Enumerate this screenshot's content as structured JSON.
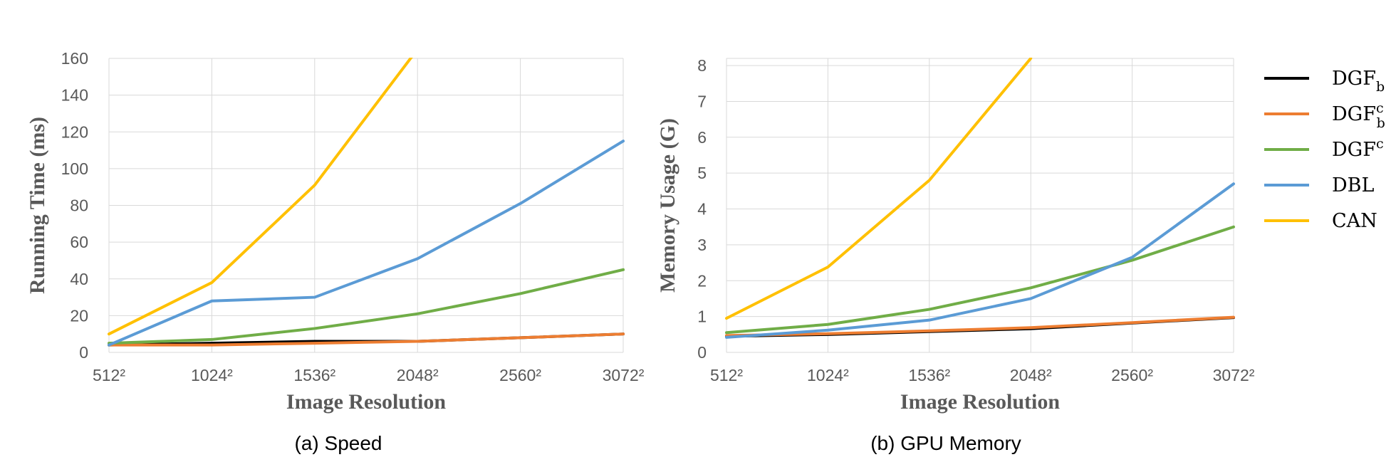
{
  "chart_data": [
    {
      "type": "line",
      "caption": "(a) Speed",
      "xlabel": "Image Resolution",
      "ylabel": "Running Time (ms)",
      "categories": [
        "512²",
        "1024²",
        "1536²",
        "2048²",
        "2560²",
        "3072²"
      ],
      "ylim": [
        0,
        160
      ],
      "yticks": [
        0,
        20,
        40,
        60,
        80,
        100,
        120,
        140,
        160
      ],
      "grid": true,
      "series": [
        {
          "name": "DGF_b",
          "color": "#000000",
          "values": [
            4,
            5,
            6,
            6,
            8,
            10
          ]
        },
        {
          "name": "DGF_b^c",
          "color": "#ED7D31",
          "values": [
            4,
            4,
            5,
            6,
            8,
            10
          ]
        },
        {
          "name": "DGF^c",
          "color": "#70AD47",
          "values": [
            5,
            7,
            13,
            21,
            32,
            45
          ]
        },
        {
          "name": "DBL",
          "color": "#5B9BD5",
          "values": [
            4,
            28,
            30,
            51,
            81,
            115
          ]
        },
        {
          "name": "CAN",
          "color": "#FFC000",
          "values": [
            10,
            38,
            91,
            165,
            null,
            null
          ]
        }
      ]
    },
    {
      "type": "line",
      "caption": "(b) GPU Memory",
      "xlabel": "Image Resolution",
      "ylabel": "Memory Usage (G)",
      "categories": [
        "512²",
        "1024²",
        "1536²",
        "2048²",
        "2560²",
        "3072²"
      ],
      "ylim": [
        0,
        8.2
      ],
      "yticks": [
        0,
        1,
        2,
        3,
        4,
        5,
        6,
        7,
        8
      ],
      "grid": true,
      "series": [
        {
          "name": "DGF_b",
          "color": "#000000",
          "values": [
            0.45,
            0.5,
            0.58,
            0.66,
            0.82,
            0.97
          ]
        },
        {
          "name": "DGF_b^c",
          "color": "#ED7D31",
          "values": [
            0.47,
            0.52,
            0.6,
            0.69,
            0.83,
            0.98
          ]
        },
        {
          "name": "DGF^c",
          "color": "#70AD47",
          "values": [
            0.55,
            0.78,
            1.2,
            1.8,
            2.57,
            3.5
          ]
        },
        {
          "name": "DBL",
          "color": "#5B9BD5",
          "values": [
            0.42,
            0.62,
            0.9,
            1.5,
            2.65,
            4.7
          ]
        },
        {
          "name": "CAN",
          "color": "#FFC000",
          "values": [
            0.95,
            2.38,
            4.8,
            8.2,
            null,
            null
          ]
        }
      ]
    }
  ],
  "legend": {
    "placement": "right",
    "items": [
      {
        "base": "DGF",
        "sub": "b",
        "sup": "",
        "color": "#000000"
      },
      {
        "base": "DGF",
        "sub": "b",
        "sup": "c",
        "color": "#ED7D31"
      },
      {
        "base": "DGF",
        "sub": "",
        "sup": "c",
        "color": "#70AD47"
      },
      {
        "base": "DBL",
        "sub": "",
        "sup": "",
        "color": "#5B9BD5"
      },
      {
        "base": "CAN",
        "sub": "",
        "sup": "",
        "color": "#FFC000"
      }
    ]
  }
}
